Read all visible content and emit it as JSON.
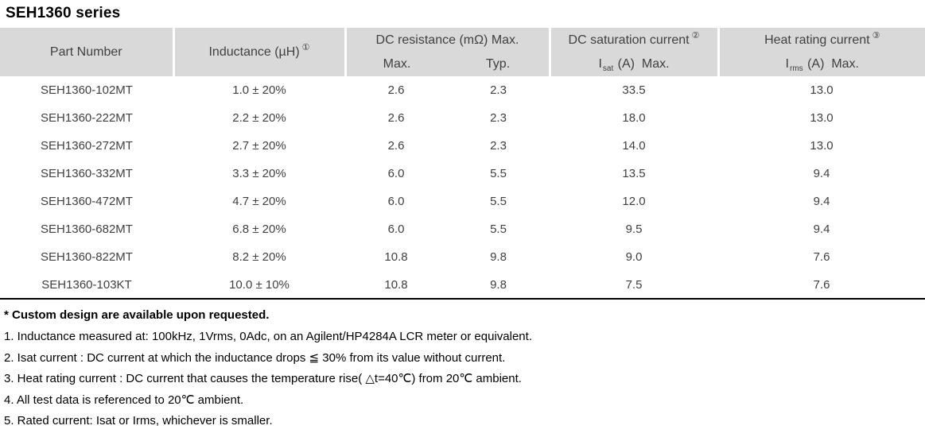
{
  "page": {
    "title": "SEH1360 series"
  },
  "colors": {
    "header_bg": "#d9d9d9",
    "cell_text": "#404040",
    "rule": "#000000"
  },
  "table": {
    "header": {
      "part_number": "Part Number",
      "inductance": "Inductance (µH)",
      "inductance_ref": "①",
      "dc_resistance": "DC resistance (mΩ) Max.",
      "dc_resistance_max": "Max.",
      "dc_resistance_typ": "Typ.",
      "dc_saturation": "DC saturation current",
      "dc_saturation_ref": "②",
      "isat_pre": "I",
      "isat_sub": "sat",
      "isat_post": " (A)  Max.",
      "heat_rating": "Heat rating current",
      "heat_rating_ref": "③",
      "irms_pre": "I",
      "irms_sub": "rms",
      "irms_post": " (A)  Max."
    },
    "rows": [
      {
        "part_number": "SEH1360-102MT",
        "inductance": "1.0 ± 20%",
        "dcr_max": "2.6",
        "dcr_typ": "2.3",
        "isat": "33.5",
        "irms": "13.0"
      },
      {
        "part_number": "SEH1360-222MT",
        "inductance": "2.2 ± 20%",
        "dcr_max": "2.6",
        "dcr_typ": "2.3",
        "isat": "18.0",
        "irms": "13.0"
      },
      {
        "part_number": "SEH1360-272MT",
        "inductance": "2.7 ± 20%",
        "dcr_max": "2.6",
        "dcr_typ": "2.3",
        "isat": "14.0",
        "irms": "13.0"
      },
      {
        "part_number": "SEH1360-332MT",
        "inductance": "3.3 ± 20%",
        "dcr_max": "6.0",
        "dcr_typ": "5.5",
        "isat": "13.5",
        "irms": "9.4"
      },
      {
        "part_number": "SEH1360-472MT",
        "inductance": "4.7 ± 20%",
        "dcr_max": "6.0",
        "dcr_typ": "5.5",
        "isat": "12.0",
        "irms": "9.4"
      },
      {
        "part_number": "SEH1360-682MT",
        "inductance": "6.8 ± 20%",
        "dcr_max": "6.0",
        "dcr_typ": "5.5",
        "isat": "9.5",
        "irms": "9.4"
      },
      {
        "part_number": "SEH1360-822MT",
        "inductance": "8.2 ± 20%",
        "dcr_max": "10.8",
        "dcr_typ": "9.8",
        "isat": "9.0",
        "irms": "7.6"
      },
      {
        "part_number": "SEH1360-103KT",
        "inductance": "10.0 ± 10%",
        "dcr_max": "10.8",
        "dcr_typ": "9.8",
        "isat": "7.5",
        "irms": "7.6"
      }
    ]
  },
  "notes": {
    "custom": "* Custom design are available upon requested.",
    "items": [
      "1. Inductance measured at: 100kHz, 1Vrms, 0Adc, on an Agilent/HP4284A LCR meter or equivalent.",
      "2. Isat current : DC current at which the inductance drops ≦ 30% from its value without current.",
      "3. Heat rating current : DC current that causes the temperature rise( △t=40℃) from 20℃ ambient.",
      "4. All test data is referenced to 20℃ ambient.",
      "5. Rated current: Isat or Irms, whichever is smaller."
    ]
  }
}
